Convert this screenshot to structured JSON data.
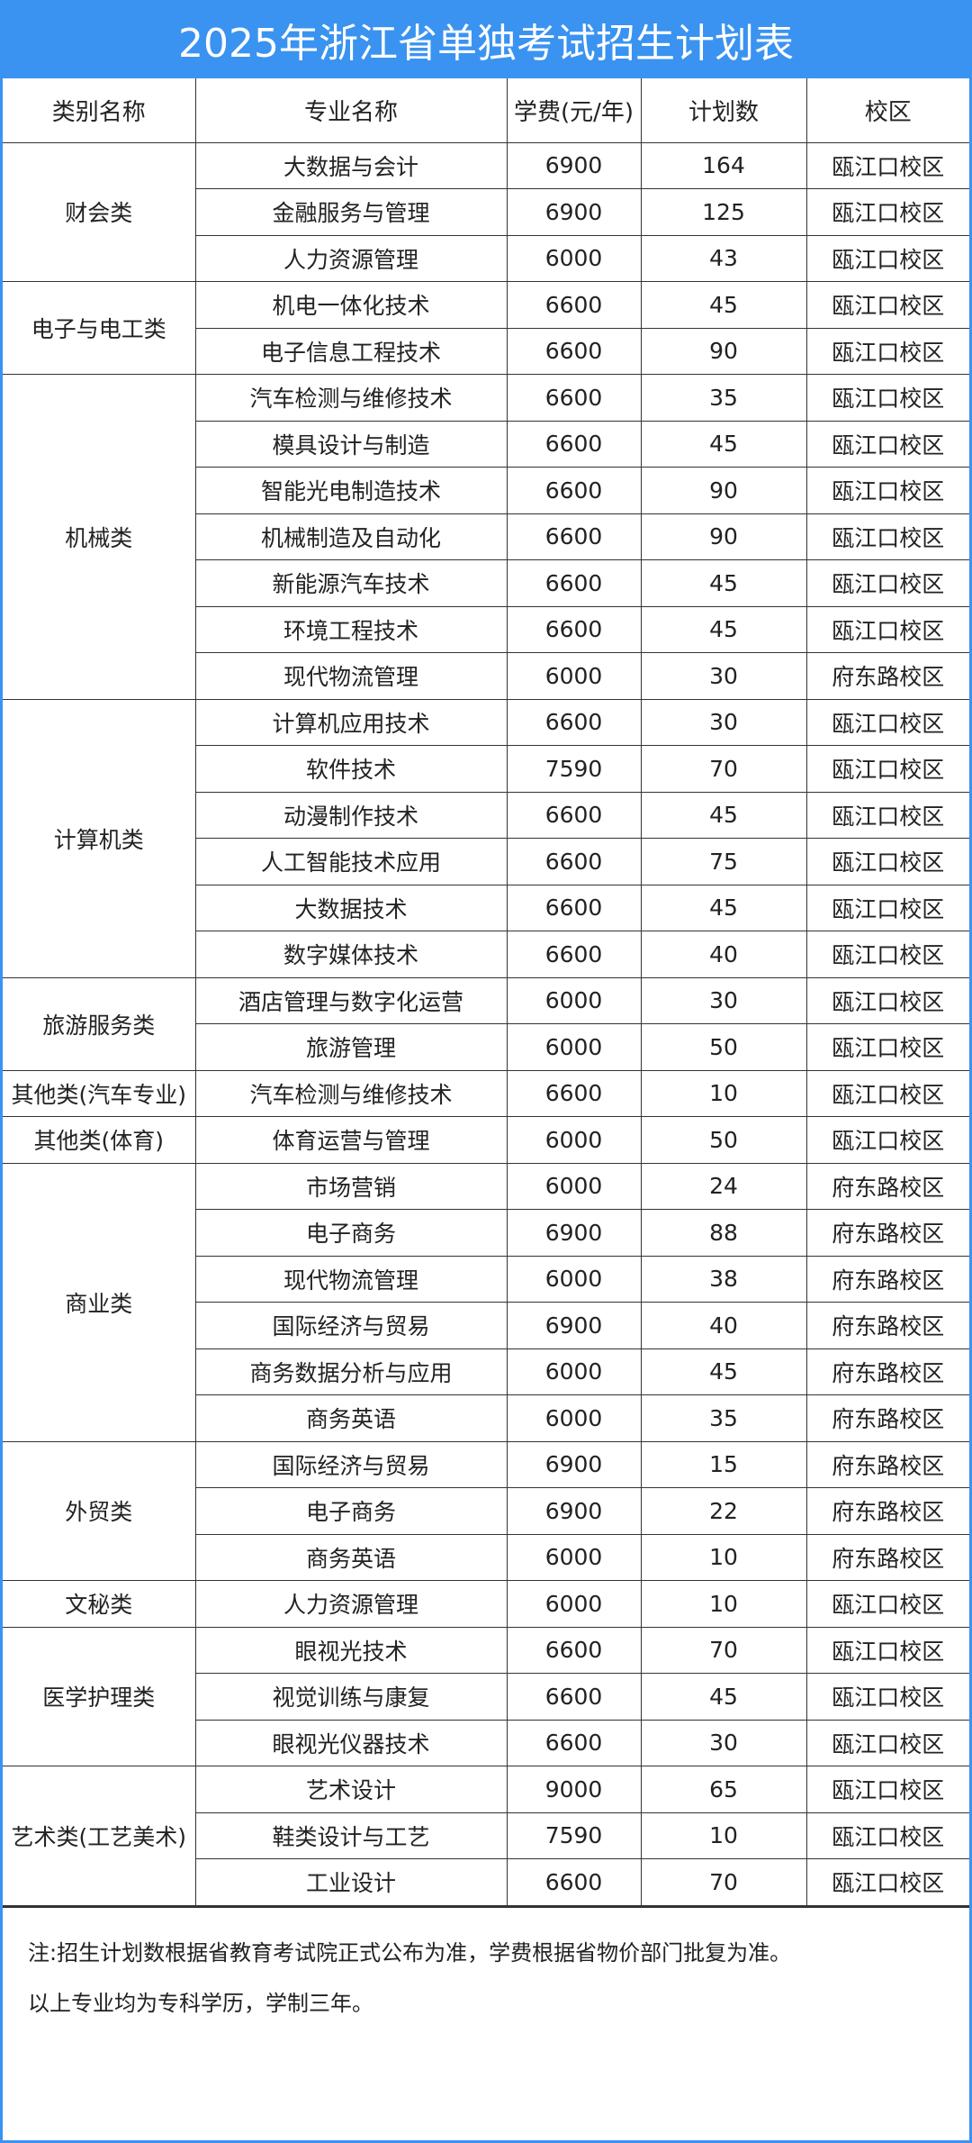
{
  "title": "2025年浙江省单独考试招生计划表",
  "headers": [
    "类别名称",
    "专业名称",
    "学费(元/年)",
    "计划数",
    "校区"
  ],
  "groups": [
    {
      "category": "财会类",
      "rows": [
        [
          "大数据与会计",
          "6900",
          "164",
          "瓯江口校区"
        ],
        [
          "金融服务与管理",
          "6900",
          "125",
          "瓯江口校区"
        ],
        [
          "人力资源管理",
          "6000",
          "43",
          "瓯江口校区"
        ]
      ]
    },
    {
      "category": "电子与电工类",
      "rows": [
        [
          "机电一体化技术",
          "6600",
          "45",
          "瓯江口校区"
        ],
        [
          "电子信息工程技术",
          "6600",
          "90",
          "瓯江口校区"
        ]
      ]
    },
    {
      "category": "机械类",
      "rows": [
        [
          "汽车检测与维修技术",
          "6600",
          "35",
          "瓯江口校区"
        ],
        [
          "模具设计与制造",
          "6600",
          "45",
          "瓯江口校区"
        ],
        [
          "智能光电制造技术",
          "6600",
          "90",
          "瓯江口校区"
        ],
        [
          "机械制造及自动化",
          "6600",
          "90",
          "瓯江口校区"
        ],
        [
          "新能源汽车技术",
          "6600",
          "45",
          "瓯江口校区"
        ],
        [
          "环境工程技术",
          "6600",
          "45",
          "瓯江口校区"
        ],
        [
          "现代物流管理",
          "6000",
          "30",
          "府东路校区"
        ]
      ]
    },
    {
      "category": "计算机类",
      "rows": [
        [
          "计算机应用技术",
          "6600",
          "30",
          "瓯江口校区"
        ],
        [
          "软件技术",
          "7590",
          "70",
          "瓯江口校区"
        ],
        [
          "动漫制作技术",
          "6600",
          "45",
          "瓯江口校区"
        ],
        [
          "人工智能技术应用",
          "6600",
          "75",
          "瓯江口校区"
        ],
        [
          "大数据技术",
          "6600",
          "45",
          "瓯江口校区"
        ],
        [
          "数字媒体技术",
          "6600",
          "40",
          "瓯江口校区"
        ]
      ]
    },
    {
      "category": "旅游服务类",
      "rows": [
        [
          "酒店管理与数字化运营",
          "6000",
          "30",
          "瓯江口校区"
        ],
        [
          "旅游管理",
          "6000",
          "50",
          "瓯江口校区"
        ]
      ]
    },
    {
      "category": "其他类(汽车专业)",
      "rows": [
        [
          "汽车检测与维修技术",
          "6600",
          "10",
          "瓯江口校区"
        ]
      ]
    },
    {
      "category": "其他类(体育)",
      "rows": [
        [
          "体育运营与管理",
          "6000",
          "50",
          "瓯江口校区"
        ]
      ]
    },
    {
      "category": "商业类",
      "rows": [
        [
          "市场营销",
          "6000",
          "24",
          "府东路校区"
        ],
        [
          "电子商务",
          "6900",
          "88",
          "府东路校区"
        ],
        [
          "现代物流管理",
          "6000",
          "38",
          "府东路校区"
        ],
        [
          "国际经济与贸易",
          "6900",
          "40",
          "府东路校区"
        ],
        [
          "商务数据分析与应用",
          "6000",
          "45",
          "府东路校区"
        ],
        [
          "商务英语",
          "6000",
          "35",
          "府东路校区"
        ]
      ]
    },
    {
      "category": "外贸类",
      "rows": [
        [
          "国际经济与贸易",
          "6900",
          "15",
          "府东路校区"
        ],
        [
          "电子商务",
          "6900",
          "22",
          "府东路校区"
        ],
        [
          "商务英语",
          "6000",
          "10",
          "府东路校区"
        ]
      ]
    },
    {
      "category": "文秘类",
      "rows": [
        [
          "人力资源管理",
          "6000",
          "10",
          "瓯江口校区"
        ]
      ]
    },
    {
      "category": "医学护理类",
      "rows": [
        [
          "眼视光技术",
          "6600",
          "70",
          "瓯江口校区"
        ],
        [
          "视觉训练与康复",
          "6600",
          "45",
          "瓯江口校区"
        ],
        [
          "眼视光仪器技术",
          "6600",
          "30",
          "瓯江口校区"
        ]
      ]
    },
    {
      "category": "艺术类(工艺美术)",
      "rows": [
        [
          "艺术设计",
          "9000",
          "65",
          "瓯江口校区"
        ],
        [
          "鞋类设计与工艺",
          "7590",
          "10",
          "瓯江口校区"
        ],
        [
          "工业设计",
          "6600",
          "70",
          "瓯江口校区"
        ]
      ]
    }
  ],
  "note": [
    "注:招生计划数根据省教育考试院正式公布为准，学费根据省物价部门批复为准。",
    "以上专业均为专科学历，学制三年。"
  ],
  "colors": {
    "header_bg": "#3a93f0",
    "border": "#333333"
  }
}
